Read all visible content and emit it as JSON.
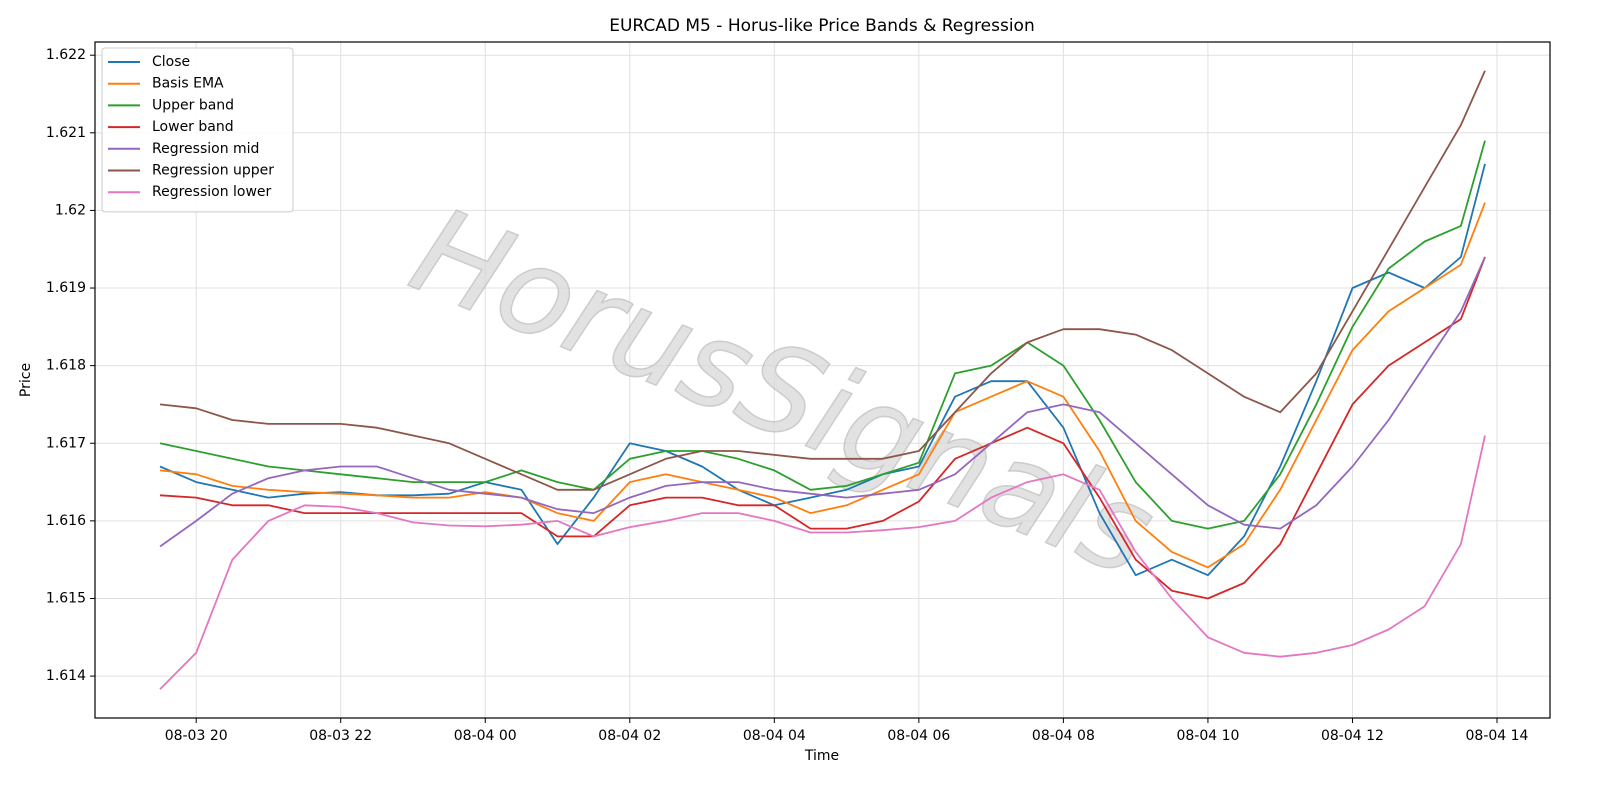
{
  "chart_data": {
    "type": "line",
    "title": "EURCAD M5 - Horus-like Price Bands & Regression",
    "x_label": "Time",
    "y_label": "Price",
    "watermark": "HorusSignals",
    "x": [
      "08-03 19:30",
      "08-03 20:00",
      "08-03 20:30",
      "08-03 21:00",
      "08-03 21:30",
      "08-03 22:00",
      "08-03 22:30",
      "08-03 23:00",
      "08-03 23:30",
      "08-04 00:00",
      "08-04 00:30",
      "08-04 01:00",
      "08-04 01:30",
      "08-04 02:00",
      "08-04 02:30",
      "08-04 03:00",
      "08-04 03:30",
      "08-04 04:00",
      "08-04 04:30",
      "08-04 05:00",
      "08-04 05:30",
      "08-04 06:00",
      "08-04 06:30",
      "08-04 07:00",
      "08-04 07:30",
      "08-04 08:00",
      "08-04 08:30",
      "08-04 09:00",
      "08-04 09:30",
      "08-04 10:00",
      "08-04 10:30",
      "08-04 11:00",
      "08-04 11:30",
      "08-04 12:00",
      "08-04 12:30",
      "08-04 13:00",
      "08-04 13:30",
      "08-04 13:50"
    ],
    "xlim": [
      "08-03 18:36",
      "08-04 14:44"
    ],
    "xticks": [
      "08-03 20",
      "08-03 22",
      "08-04 00",
      "08-04 02",
      "08-04 04",
      "08-04 06",
      "08-04 08",
      "08-04 10",
      "08-04 12",
      "08-04 14"
    ],
    "ylim": [
      1.61346,
      1.62217
    ],
    "yticks": [
      1.614,
      1.615,
      1.616,
      1.617,
      1.618,
      1.619,
      1.62,
      1.621,
      1.622
    ],
    "grid": true,
    "legend": "upper left",
    "series": [
      {
        "name": "Close",
        "color": "#1f77b4",
        "values": [
          1.6167,
          1.6165,
          1.6164,
          1.6163,
          1.61635,
          1.61637,
          1.61633,
          1.61633,
          1.61635,
          1.6165,
          1.6164,
          1.6157,
          1.6163,
          1.617,
          1.6169,
          1.6167,
          1.6164,
          1.6162,
          1.6163,
          1.6164,
          1.6166,
          1.6167,
          1.6176,
          1.6178,
          1.6178,
          1.6172,
          1.6161,
          1.6153,
          1.6155,
          1.6153,
          1.6158,
          1.6167,
          1.6178,
          1.619,
          1.6192,
          1.619,
          1.6194,
          1.6206
        ]
      },
      {
        "name": "Basis EMA",
        "color": "#ff7f0e",
        "values": [
          1.61665,
          1.6166,
          1.61645,
          1.6164,
          1.61637,
          1.61635,
          1.61633,
          1.6163,
          1.6163,
          1.61637,
          1.6163,
          1.6161,
          1.616,
          1.6165,
          1.6166,
          1.6165,
          1.6164,
          1.6163,
          1.6161,
          1.6162,
          1.6164,
          1.6166,
          1.6174,
          1.6176,
          1.6178,
          1.6176,
          1.6169,
          1.616,
          1.6156,
          1.6154,
          1.6157,
          1.6164,
          1.6173,
          1.6182,
          1.6187,
          1.619,
          1.6193,
          1.6201
        ]
      },
      {
        "name": "Upper band",
        "color": "#2ca02c",
        "values": [
          1.617,
          1.6169,
          1.6168,
          1.6167,
          1.61665,
          1.6166,
          1.61655,
          1.6165,
          1.6165,
          1.6165,
          1.61665,
          1.6165,
          1.6164,
          1.6168,
          1.6169,
          1.6169,
          1.6168,
          1.61665,
          1.6164,
          1.61645,
          1.6166,
          1.61675,
          1.6179,
          1.618,
          1.6183,
          1.618,
          1.6173,
          1.6165,
          1.616,
          1.6159,
          1.616,
          1.6166,
          1.6175,
          1.6185,
          1.61925,
          1.6196,
          1.6198,
          1.6209
        ]
      },
      {
        "name": "Lower band",
        "color": "#d62728",
        "values": [
          1.61633,
          1.6163,
          1.6162,
          1.6162,
          1.6161,
          1.6161,
          1.6161,
          1.6161,
          1.6161,
          1.6161,
          1.6161,
          1.6158,
          1.6158,
          1.6162,
          1.6163,
          1.6163,
          1.6162,
          1.6162,
          1.6159,
          1.6159,
          1.616,
          1.61625,
          1.6168,
          1.617,
          1.6172,
          1.617,
          1.6163,
          1.6155,
          1.6151,
          1.615,
          1.6152,
          1.6157,
          1.6166,
          1.6175,
          1.618,
          1.6183,
          1.6186,
          1.6194
        ]
      },
      {
        "name": "Regression mid",
        "color": "#9467bd",
        "values": [
          1.61567,
          1.616,
          1.61635,
          1.61655,
          1.61665,
          1.6167,
          1.6167,
          1.61655,
          1.6164,
          1.61635,
          1.6163,
          1.61615,
          1.6161,
          1.6163,
          1.61645,
          1.6165,
          1.6165,
          1.6164,
          1.61635,
          1.6163,
          1.61635,
          1.6164,
          1.6166,
          1.617,
          1.6174,
          1.6175,
          1.6174,
          1.617,
          1.6166,
          1.6162,
          1.61595,
          1.6159,
          1.6162,
          1.6167,
          1.6173,
          1.618,
          1.6187,
          1.6194
        ]
      },
      {
        "name": "Regression upper",
        "color": "#8c564b",
        "values": [
          1.6175,
          1.61745,
          1.6173,
          1.61725,
          1.61725,
          1.61725,
          1.6172,
          1.6171,
          1.617,
          1.6168,
          1.6166,
          1.6164,
          1.6164,
          1.6166,
          1.6168,
          1.6169,
          1.6169,
          1.61685,
          1.6168,
          1.6168,
          1.6168,
          1.6169,
          1.6174,
          1.6179,
          1.6183,
          1.61847,
          1.61847,
          1.6184,
          1.6182,
          1.6179,
          1.6176,
          1.6174,
          1.6179,
          1.6187,
          1.6195,
          1.6203,
          1.6211,
          1.6218
        ]
      },
      {
        "name": "Regression lower",
        "color": "#e377c2",
        "values": [
          1.61383,
          1.6143,
          1.6155,
          1.616,
          1.6162,
          1.61618,
          1.6161,
          1.61598,
          1.61594,
          1.61593,
          1.61595,
          1.616,
          1.6158,
          1.61592,
          1.616,
          1.6161,
          1.6161,
          1.616,
          1.61585,
          1.61585,
          1.61588,
          1.61592,
          1.616,
          1.6163,
          1.6165,
          1.6166,
          1.6164,
          1.6156,
          1.615,
          1.6145,
          1.6143,
          1.61425,
          1.6143,
          1.6144,
          1.6146,
          1.6149,
          1.6157,
          1.6171
        ]
      }
    ]
  }
}
